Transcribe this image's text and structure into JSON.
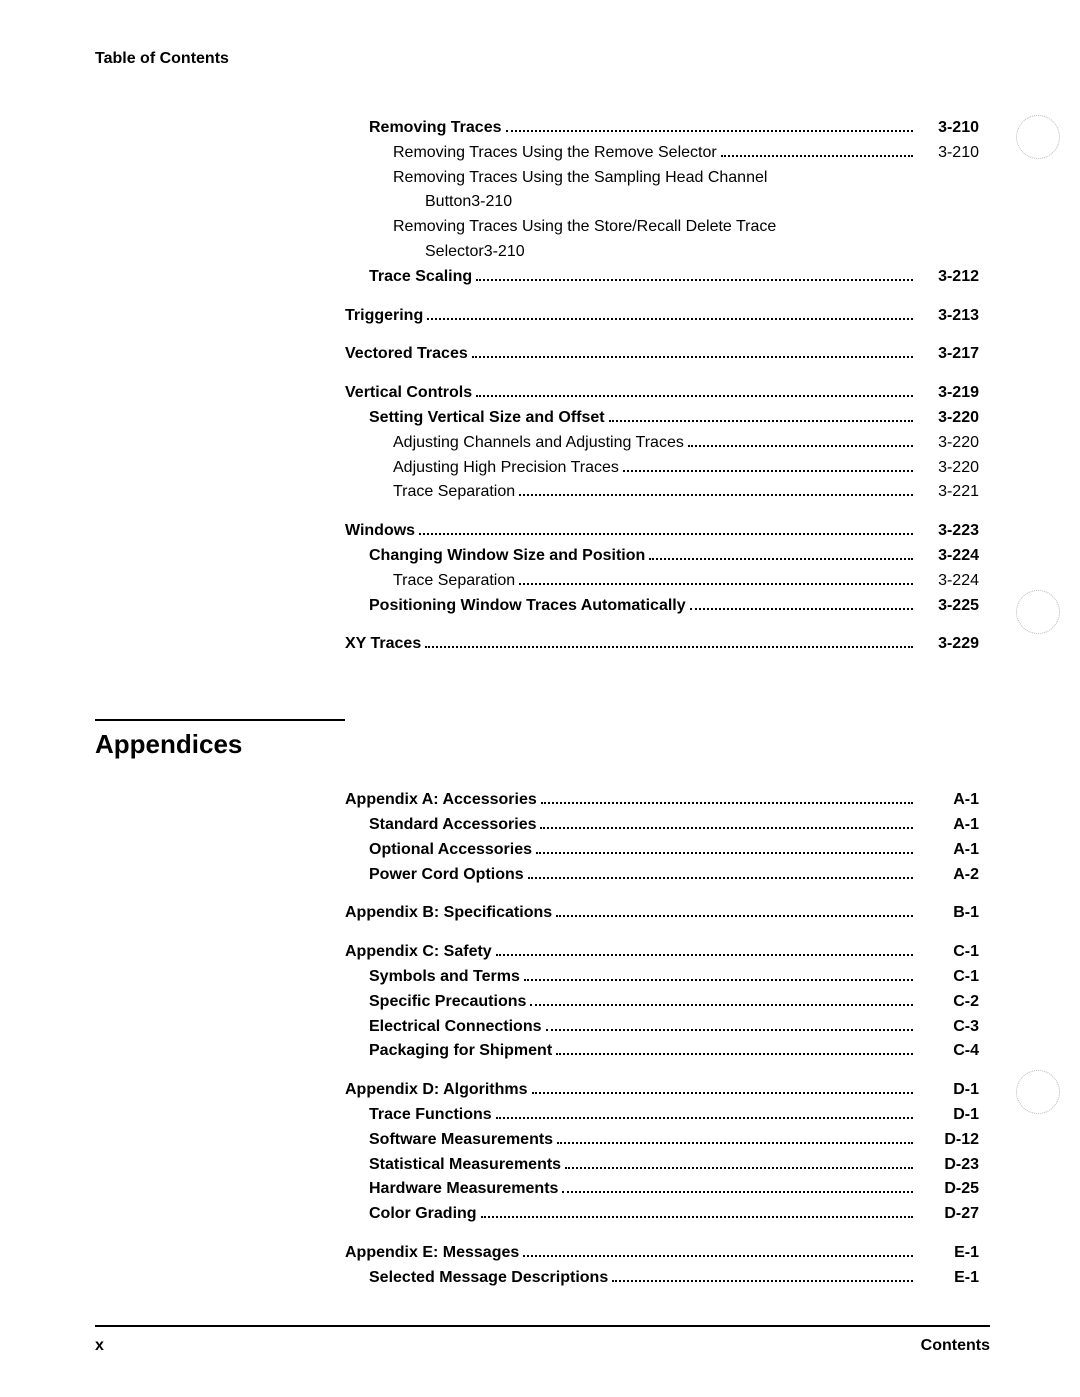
{
  "header": "Table of Contents",
  "section1": [
    {
      "label": "Removing Traces",
      "page": "3-210",
      "indent": 1,
      "bold": true,
      "gap": ""
    },
    {
      "label": "Removing Traces Using the Remove Selector",
      "page": "3-210",
      "indent": 2,
      "bold": false,
      "gap": ""
    },
    {
      "wrap": true,
      "first": "Removing Traces Using the Sampling Head Channel",
      "cont": "Button",
      "page": "3-210",
      "indent": 2,
      "contIndent": 3,
      "bold": false
    },
    {
      "wrap": true,
      "first": "Removing Traces Using the Store/Recall Delete Trace",
      "cont": "Selector",
      "page": "3-210",
      "indent": 2,
      "contIndent": 3,
      "bold": false
    },
    {
      "label": "Trace Scaling",
      "page": "3-212",
      "indent": 1,
      "bold": true,
      "gap": ""
    },
    {
      "label": "Triggering",
      "page": "3-213",
      "indent": 0,
      "bold": true,
      "gap": "m"
    },
    {
      "label": "Vectored Traces",
      "page": "3-217",
      "indent": 0,
      "bold": true,
      "gap": "m"
    },
    {
      "label": "Vertical Controls",
      "page": "3-219",
      "indent": 0,
      "bold": true,
      "gap": "m"
    },
    {
      "label": "Setting Vertical Size and Offset",
      "page": "3-220",
      "indent": 1,
      "bold": true,
      "gap": ""
    },
    {
      "label": "Adjusting Channels and Adjusting Traces",
      "page": "3-220",
      "indent": 2,
      "bold": false,
      "gap": ""
    },
    {
      "label": "Adjusting High Precision Traces",
      "page": "3-220",
      "indent": 2,
      "bold": false,
      "gap": ""
    },
    {
      "label": "Trace Separation",
      "page": "3-221",
      "indent": 2,
      "bold": false,
      "gap": ""
    },
    {
      "label": "Windows",
      "page": "3-223",
      "indent": 0,
      "bold": true,
      "gap": "m"
    },
    {
      "label": "Changing Window Size and Position",
      "page": "3-224",
      "indent": 1,
      "bold": true,
      "gap": ""
    },
    {
      "label": "Trace Separation",
      "page": "3-224",
      "indent": 2,
      "bold": false,
      "gap": ""
    },
    {
      "label": "Positioning Window Traces Automatically",
      "page": "3-225",
      "indent": 1,
      "bold": true,
      "gap": ""
    },
    {
      "label": "XY Traces",
      "page": "3-229",
      "indent": 0,
      "bold": true,
      "gap": "m"
    }
  ],
  "appendices_title": "Appendices",
  "section2": [
    {
      "label": "Appendix A: Accessories",
      "page": "A-1",
      "indent": 0,
      "bold": true,
      "gap": ""
    },
    {
      "label": "Standard Accessories",
      "page": "A-1",
      "indent": 1,
      "bold": true,
      "gap": ""
    },
    {
      "label": "Optional Accessories",
      "page": "A-1",
      "indent": 1,
      "bold": true,
      "gap": ""
    },
    {
      "label": "Power Cord Options",
      "page": "A-2",
      "indent": 1,
      "bold": true,
      "gap": ""
    },
    {
      "label": "Appendix B: Specifications",
      "page": "B-1",
      "indent": 0,
      "bold": true,
      "gap": "m"
    },
    {
      "label": "Appendix C: Safety",
      "page": "C-1",
      "indent": 0,
      "bold": true,
      "gap": "m"
    },
    {
      "label": "Symbols and Terms",
      "page": "C-1",
      "indent": 1,
      "bold": true,
      "gap": ""
    },
    {
      "label": "Specific Precautions",
      "page": "C-2",
      "indent": 1,
      "bold": true,
      "gap": ""
    },
    {
      "label": "Electrical Connections",
      "page": "C-3",
      "indent": 1,
      "bold": true,
      "gap": ""
    },
    {
      "label": "Packaging for Shipment",
      "page": "C-4",
      "indent": 1,
      "bold": true,
      "gap": ""
    },
    {
      "label": "Appendix D: Algorithms",
      "page": "D-1",
      "indent": 0,
      "bold": true,
      "gap": "m"
    },
    {
      "label": "Trace Functions",
      "page": "D-1",
      "indent": 1,
      "bold": true,
      "gap": ""
    },
    {
      "label": "Software Measurements",
      "page": "D-12",
      "indent": 1,
      "bold": true,
      "gap": ""
    },
    {
      "label": "Statistical Measurements",
      "page": "D-23",
      "indent": 1,
      "bold": true,
      "gap": ""
    },
    {
      "label": "Hardware Measurements",
      "page": "D-25",
      "indent": 1,
      "bold": true,
      "gap": ""
    },
    {
      "label": "Color Grading",
      "page": "D-27",
      "indent": 1,
      "bold": true,
      "gap": ""
    },
    {
      "label": "Appendix E: Messages",
      "page": "E-1",
      "indent": 0,
      "bold": true,
      "gap": "m"
    },
    {
      "label": "Selected Message Descriptions",
      "page": "E-1",
      "indent": 1,
      "bold": true,
      "gap": ""
    }
  ],
  "footer_left": "x",
  "footer_right": "Contents"
}
